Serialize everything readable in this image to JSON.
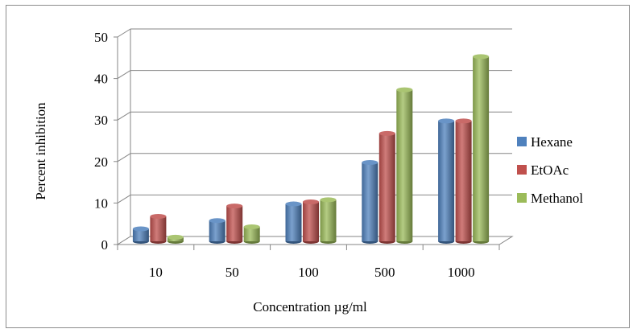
{
  "chart_data": {
    "type": "bar",
    "style": "3d-clustered-column",
    "title": "",
    "xlabel": "Concentration µg/ml",
    "ylabel": "Percent inhibition",
    "ylim": [
      0,
      50
    ],
    "yticks": [
      "0",
      "10",
      "20",
      "30",
      "40",
      "50"
    ],
    "categories": [
      "10",
      "50",
      "100",
      "500",
      "1000"
    ],
    "series": [
      {
        "name": "Hexane",
        "color": "#4f81bd",
        "values": [
          3,
          5,
          9,
          19,
          29
        ]
      },
      {
        "name": "EtOAc",
        "color": "#c0504d",
        "values": [
          6,
          8.5,
          9.5,
          26,
          29
        ]
      },
      {
        "name": "Methanol",
        "color": "#9bbb59",
        "values": [
          1,
          3.5,
          10,
          36.5,
          44.5
        ]
      }
    ],
    "grid": true,
    "legend": "right"
  }
}
